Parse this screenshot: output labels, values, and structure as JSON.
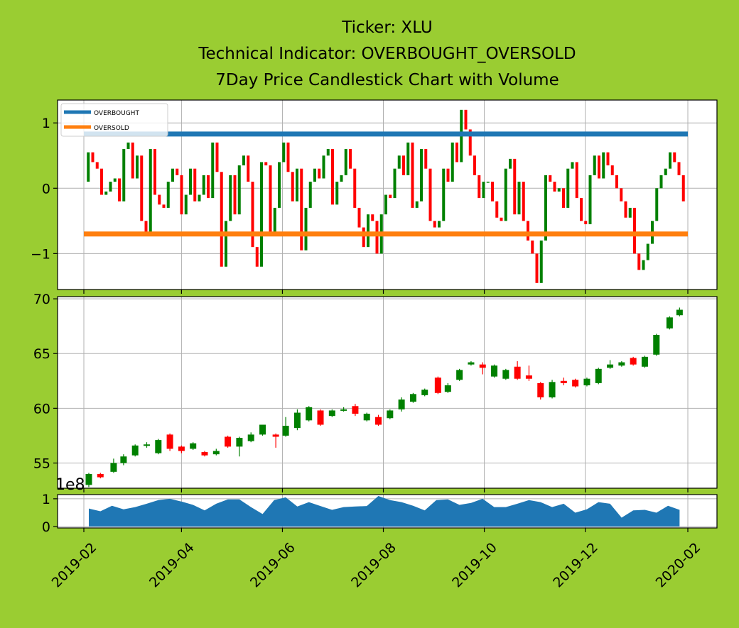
{
  "title": {
    "line1": "Ticker: XLU",
    "line2": "Technical Indicator: OVERBOUGHT_OVERSOLD",
    "line3": "7Day Price Candlestick Chart with Volume"
  },
  "colors": {
    "background": "#9acd32",
    "up": "#008000",
    "down": "#ff0000",
    "overbought": "#1f77b4",
    "oversold": "#ff7f0e",
    "volume": "#1f77b4",
    "grid": "#b0b0b0"
  },
  "chart_data": [
    {
      "type": "candlestick",
      "panel": "indicator",
      "ylim": [
        -1.55,
        1.35
      ],
      "yticks": [
        {
          "v": 1,
          "label": "1"
        },
        {
          "v": 0,
          "label": "0"
        },
        {
          "v": -1,
          "label": "−1"
        }
      ],
      "legend": {
        "position": "upper-left",
        "entries": [
          "OVERBOUGHT",
          "OVERSOLD"
        ]
      },
      "lines": [
        {
          "name": "OVERBOUGHT",
          "value": 0.83,
          "x_start": "2019-02-01",
          "x_end": "2020-02-01",
          "color": "#1f77b4"
        },
        {
          "name": "OVERSOLD",
          "value": -0.7,
          "x_start": "2019-02-01",
          "x_end": "2020-02-01",
          "color": "#ff7f0e"
        }
      ],
      "x_start": "2019-02-01",
      "x_end": "2020-02-01",
      "values": [
        0.1,
        0.55,
        0.4,
        0.3,
        -0.1,
        -0.05,
        0.1,
        0.15,
        -0.2,
        0.6,
        0.7,
        0.15,
        0.5,
        -0.5,
        -0.7,
        0.6,
        -0.1,
        -0.25,
        -0.3,
        0.1,
        0.3,
        0.2,
        -0.4,
        -0.1,
        0.3,
        -0.2,
        -0.1,
        0.2,
        -0.15,
        0.7,
        0.25,
        -1.2,
        -0.5,
        0.2,
        -0.4,
        0.35,
        0.5,
        0.1,
        -0.9,
        -1.2,
        0.4,
        0.35,
        -0.7,
        -0.3,
        0.4,
        0.7,
        0.25,
        -0.2,
        0.3,
        -0.95,
        -0.3,
        0.1,
        0.3,
        0.15,
        0.5,
        0.6,
        -0.25,
        0.1,
        0.2,
        0.6,
        0.3,
        -0.3,
        -0.6,
        -0.9,
        -0.4,
        -0.5,
        -1.0,
        -0.4,
        -0.1,
        -0.15,
        0.3,
        0.5,
        0.2,
        0.7,
        -0.3,
        -0.2,
        0.6,
        0.3,
        -0.5,
        -0.6,
        -0.5,
        0.3,
        0.1,
        0.7,
        0.4,
        1.2,
        0.9,
        0.5,
        0.2,
        -0.15,
        0.1,
        0.1,
        -0.2,
        -0.45,
        -0.5,
        0.3,
        0.45,
        -0.4,
        0.1,
        -0.5,
        -0.8,
        -1.0,
        -1.45,
        -0.8,
        0.2,
        0.1,
        -0.05,
        0.0,
        -0.3,
        0.3,
        0.4,
        -0.15,
        -0.5,
        -0.55,
        0.2,
        0.5,
        0.15,
        0.55,
        0.35,
        0.2,
        0.0,
        -0.2,
        -0.45,
        -0.3,
        -1.0,
        -1.25,
        -1.1,
        -0.85,
        -0.5,
        0.0,
        0.2,
        0.3,
        0.55,
        0.4,
        0.2,
        -0.2
      ]
    },
    {
      "type": "candlestick",
      "panel": "price",
      "ylim": [
        52.7,
        70.2
      ],
      "yticks": [
        {
          "v": 55,
          "label": "55"
        },
        {
          "v": 60,
          "label": "60"
        },
        {
          "v": 65,
          "label": "65"
        },
        {
          "v": 70,
          "label": "70"
        }
      ],
      "candles": [
        {
          "d": "2019-02-04",
          "o": 53.0,
          "h": 54.1,
          "l": 52.8,
          "c": 54.0,
          "up": true
        },
        {
          "d": "2019-02-11",
          "o": 54.0,
          "h": 54.1,
          "l": 53.6,
          "c": 53.7,
          "up": false
        },
        {
          "d": "2019-02-19",
          "o": 54.2,
          "h": 55.4,
          "l": 54.1,
          "c": 55.0,
          "up": true
        },
        {
          "d": "2019-02-25",
          "o": 55.0,
          "h": 55.8,
          "l": 54.8,
          "c": 55.6,
          "up": true
        },
        {
          "d": "2019-03-04",
          "o": 55.7,
          "h": 56.7,
          "l": 55.6,
          "c": 56.6,
          "up": true
        },
        {
          "d": "2019-03-11",
          "o": 56.6,
          "h": 56.9,
          "l": 56.4,
          "c": 56.7,
          "up": true
        },
        {
          "d": "2019-03-18",
          "o": 55.9,
          "h": 57.2,
          "l": 55.8,
          "c": 57.1,
          "up": true
        },
        {
          "d": "2019-03-25",
          "o": 57.6,
          "h": 57.7,
          "l": 56.1,
          "c": 56.3,
          "up": false
        },
        {
          "d": "2019-04-01",
          "o": 56.5,
          "h": 56.6,
          "l": 55.9,
          "c": 56.1,
          "up": false
        },
        {
          "d": "2019-04-08",
          "o": 56.3,
          "h": 56.9,
          "l": 56.2,
          "c": 56.8,
          "up": true
        },
        {
          "d": "2019-04-15",
          "o": 56.0,
          "h": 56.1,
          "l": 55.6,
          "c": 55.7,
          "up": false
        },
        {
          "d": "2019-04-22",
          "o": 55.8,
          "h": 56.3,
          "l": 55.7,
          "c": 56.1,
          "up": true
        },
        {
          "d": "2019-04-29",
          "o": 57.4,
          "h": 57.5,
          "l": 56.4,
          "c": 56.5,
          "up": false
        },
        {
          "d": "2019-05-06",
          "o": 56.5,
          "h": 57.4,
          "l": 55.6,
          "c": 57.3,
          "up": true
        },
        {
          "d": "2019-05-13",
          "o": 57.0,
          "h": 57.8,
          "l": 56.9,
          "c": 57.6,
          "up": true
        },
        {
          "d": "2019-05-20",
          "o": 57.6,
          "h": 58.5,
          "l": 57.5,
          "c": 58.5,
          "up": true
        },
        {
          "d": "2019-05-28",
          "o": 57.6,
          "h": 57.7,
          "l": 56.4,
          "c": 57.4,
          "up": false
        },
        {
          "d": "2019-06-03",
          "o": 57.5,
          "h": 59.2,
          "l": 57.4,
          "c": 58.4,
          "up": true
        },
        {
          "d": "2019-06-10",
          "o": 58.2,
          "h": 59.9,
          "l": 58.0,
          "c": 59.6,
          "up": true
        },
        {
          "d": "2019-06-17",
          "o": 58.9,
          "h": 60.2,
          "l": 58.8,
          "c": 60.1,
          "up": true
        },
        {
          "d": "2019-06-24",
          "o": 59.8,
          "h": 59.9,
          "l": 58.4,
          "c": 58.5,
          "up": false
        },
        {
          "d": "2019-07-01",
          "o": 59.3,
          "h": 59.9,
          "l": 59.2,
          "c": 59.8,
          "up": true
        },
        {
          "d": "2019-07-08",
          "o": 59.8,
          "h": 60.1,
          "l": 59.7,
          "c": 59.9,
          "up": true
        },
        {
          "d": "2019-07-15",
          "o": 60.2,
          "h": 60.4,
          "l": 59.3,
          "c": 59.5,
          "up": false
        },
        {
          "d": "2019-07-22",
          "o": 58.9,
          "h": 59.6,
          "l": 58.8,
          "c": 59.5,
          "up": true
        },
        {
          "d": "2019-07-29",
          "o": 59.2,
          "h": 59.4,
          "l": 58.4,
          "c": 58.5,
          "up": false
        },
        {
          "d": "2019-08-05",
          "o": 59.1,
          "h": 59.9,
          "l": 59.0,
          "c": 59.8,
          "up": true
        },
        {
          "d": "2019-08-12",
          "o": 59.9,
          "h": 61.0,
          "l": 59.7,
          "c": 60.8,
          "up": true
        },
        {
          "d": "2019-08-19",
          "o": 60.6,
          "h": 61.4,
          "l": 60.5,
          "c": 61.3,
          "up": true
        },
        {
          "d": "2019-08-26",
          "o": 61.2,
          "h": 61.8,
          "l": 61.1,
          "c": 61.7,
          "up": true
        },
        {
          "d": "2019-09-03",
          "o": 62.8,
          "h": 62.9,
          "l": 61.3,
          "c": 61.4,
          "up": false
        },
        {
          "d": "2019-09-09",
          "o": 61.5,
          "h": 62.3,
          "l": 61.4,
          "c": 62.1,
          "up": true
        },
        {
          "d": "2019-09-16",
          "o": 62.6,
          "h": 63.6,
          "l": 62.5,
          "c": 63.5,
          "up": true
        },
        {
          "d": "2019-09-23",
          "o": 64.0,
          "h": 64.3,
          "l": 63.9,
          "c": 64.2,
          "up": true
        },
        {
          "d": "2019-09-30",
          "o": 64.0,
          "h": 64.2,
          "l": 63.1,
          "c": 63.7,
          "up": false
        },
        {
          "d": "2019-10-07",
          "o": 62.9,
          "h": 64.0,
          "l": 62.8,
          "c": 63.9,
          "up": true
        },
        {
          "d": "2019-10-14",
          "o": 62.7,
          "h": 63.6,
          "l": 62.6,
          "c": 63.5,
          "up": true
        },
        {
          "d": "2019-10-21",
          "o": 63.8,
          "h": 64.3,
          "l": 62.6,
          "c": 62.7,
          "up": false
        },
        {
          "d": "2019-10-28",
          "o": 63.0,
          "h": 63.9,
          "l": 62.5,
          "c": 62.7,
          "up": false
        },
        {
          "d": "2019-11-04",
          "o": 62.3,
          "h": 62.4,
          "l": 60.8,
          "c": 61.0,
          "up": false
        },
        {
          "d": "2019-11-11",
          "o": 61.0,
          "h": 62.6,
          "l": 60.9,
          "c": 62.4,
          "up": true
        },
        {
          "d": "2019-11-18",
          "o": 62.5,
          "h": 62.8,
          "l": 62.1,
          "c": 62.3,
          "up": false
        },
        {
          "d": "2019-11-25",
          "o": 62.6,
          "h": 62.7,
          "l": 61.9,
          "c": 62.0,
          "up": false
        },
        {
          "d": "2019-12-02",
          "o": 62.1,
          "h": 62.8,
          "l": 62.0,
          "c": 62.7,
          "up": true
        },
        {
          "d": "2019-12-09",
          "o": 62.3,
          "h": 63.7,
          "l": 62.2,
          "c": 63.6,
          "up": true
        },
        {
          "d": "2019-12-16",
          "o": 63.7,
          "h": 64.4,
          "l": 63.6,
          "c": 64.0,
          "up": true
        },
        {
          "d": "2019-12-23",
          "o": 63.9,
          "h": 64.3,
          "l": 63.8,
          "c": 64.2,
          "up": true
        },
        {
          "d": "2019-12-30",
          "o": 64.6,
          "h": 64.7,
          "l": 63.9,
          "c": 64.0,
          "up": false
        },
        {
          "d": "2020-01-06",
          "o": 63.8,
          "h": 64.8,
          "l": 63.7,
          "c": 64.7,
          "up": true
        },
        {
          "d": "2020-01-13",
          "o": 64.9,
          "h": 66.8,
          "l": 64.8,
          "c": 66.7,
          "up": true
        },
        {
          "d": "2020-01-21",
          "o": 67.3,
          "h": 68.4,
          "l": 67.2,
          "c": 68.3,
          "up": true
        },
        {
          "d": "2020-01-27",
          "o": 68.5,
          "h": 69.2,
          "l": 68.4,
          "c": 69.0,
          "up": true
        }
      ]
    },
    {
      "type": "area",
      "panel": "volume",
      "ylim": [
        -0.05,
        1.15
      ],
      "yticks": [
        {
          "v": 0,
          "label": "0"
        },
        {
          "v": 1,
          "label": "1"
        }
      ],
      "offset_label": "1e8",
      "x_start": "2019-02-04",
      "x_end": "2020-01-27",
      "values": [
        0.65,
        0.55,
        0.75,
        0.62,
        0.7,
        0.82,
        0.95,
        1.0,
        0.9,
        0.78,
        0.58,
        0.82,
        0.98,
        0.98,
        0.7,
        0.45,
        0.95,
        1.05,
        0.72,
        0.88,
        0.74,
        0.6,
        0.7,
        0.72,
        0.74,
        1.1,
        0.95,
        0.88,
        0.75,
        0.58,
        0.95,
        0.98,
        0.78,
        0.85,
        1.0,
        0.7,
        0.7,
        0.82,
        0.95,
        0.88,
        0.7,
        0.82,
        0.5,
        0.62,
        0.88,
        0.82,
        0.32,
        0.58,
        0.6,
        0.5,
        0.75,
        0.6
      ]
    }
  ],
  "xaxis": {
    "ticks": [
      {
        "d": "2019-02-01",
        "label": "2019-02"
      },
      {
        "d": "2019-04-01",
        "label": "2019-04"
      },
      {
        "d": "2019-06-01",
        "label": "2019-06"
      },
      {
        "d": "2019-08-01",
        "label": "2019-08"
      },
      {
        "d": "2019-10-01",
        "label": "2019-10"
      },
      {
        "d": "2019-12-01",
        "label": "2019-12"
      },
      {
        "d": "2020-02-01",
        "label": "2020-02"
      }
    ]
  }
}
